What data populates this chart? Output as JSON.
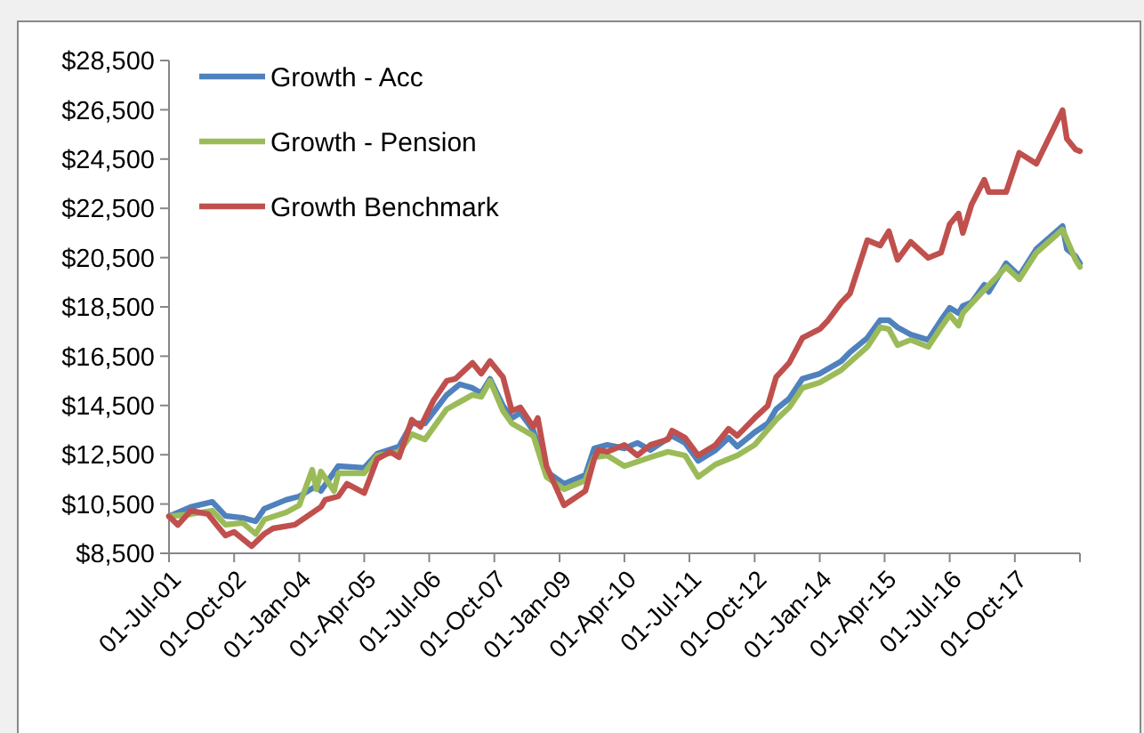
{
  "chart_data": {
    "type": "line",
    "xlim": [
      "2001-07",
      "2019-01"
    ],
    "xticks": [
      {
        "value": "2001-07",
        "label": "01-Jul-01"
      },
      {
        "value": "2002-10",
        "label": "01-Oct-02"
      },
      {
        "value": "2004-01",
        "label": "01-Jan-04"
      },
      {
        "value": "2005-04",
        "label": "01-Apr-05"
      },
      {
        "value": "2006-07",
        "label": "01-Jul-06"
      },
      {
        "value": "2007-10",
        "label": "01-Oct-07"
      },
      {
        "value": "2009-01",
        "label": "01-Jan-09"
      },
      {
        "value": "2010-04",
        "label": "01-Apr-10"
      },
      {
        "value": "2011-07",
        "label": "01-Jul-11"
      },
      {
        "value": "2012-10",
        "label": "01-Oct-12"
      },
      {
        "value": "2014-01",
        "label": "01-Jan-14"
      },
      {
        "value": "2015-04",
        "label": "01-Apr-15"
      },
      {
        "value": "2016-07",
        "label": "01-Jul-16"
      },
      {
        "value": "2017-10",
        "label": "01-Oct-17"
      },
      {
        "value": "2019-01",
        "label": null
      }
    ],
    "ylim": [
      8500,
      28500
    ],
    "yticks": [
      {
        "value": 8500,
        "label": "$8,500"
      },
      {
        "value": 10500,
        "label": "$10,500"
      },
      {
        "value": 12500,
        "label": "$12,500"
      },
      {
        "value": 14500,
        "label": "$14,500"
      },
      {
        "value": 16500,
        "label": "$16,500"
      },
      {
        "value": 18500,
        "label": "$18,500"
      },
      {
        "value": 20500,
        "label": "$20,500"
      },
      {
        "value": 22500,
        "label": "$22,500"
      },
      {
        "value": 24500,
        "label": "$24,500"
      },
      {
        "value": 26500,
        "label": "$26,500"
      },
      {
        "value": 28500,
        "label": "$28,500"
      }
    ],
    "grid": false,
    "legend": "top left",
    "marker": "none",
    "line_style": "solid",
    "series": [
      {
        "name": "Growth - Acc",
        "color": "#4f81bd",
        "x": [
          "2001-07",
          "2001-12",
          "2002-05",
          "2002-08",
          "2002-12",
          "2003-03",
          "2003-05",
          "2003-10",
          "2004-01",
          "2004-05",
          "2004-06",
          "2004-10",
          "2005-04",
          "2005-07",
          "2005-12",
          "2006-03",
          "2006-06",
          "2006-11",
          "2007-02",
          "2007-05",
          "2007-07",
          "2007-09",
          "2007-12",
          "2008-02",
          "2008-04",
          "2008-07",
          "2008-10",
          "2009-02",
          "2009-07",
          "2009-09",
          "2009-12",
          "2010-04",
          "2010-07",
          "2010-10",
          "2011-03",
          "2011-06",
          "2011-09",
          "2012-01",
          "2012-04",
          "2012-06",
          "2012-10",
          "2013-01",
          "2013-03",
          "2013-06",
          "2013-09",
          "2014-01",
          "2014-06",
          "2014-08",
          "2014-12",
          "2015-03",
          "2015-05",
          "2015-07",
          "2015-10",
          "2016-02",
          "2016-05",
          "2016-07",
          "2016-09",
          "2016-10",
          "2016-12",
          "2017-03",
          "2017-04",
          "2017-08",
          "2017-11",
          "2018-03",
          "2018-09",
          "2018-10",
          "2018-12",
          "2019-01"
        ],
        "values": [
          10000,
          10380,
          10590,
          10020,
          9940,
          9800,
          10310,
          10670,
          10810,
          11240,
          11030,
          12040,
          11970,
          12540,
          12830,
          13770,
          13770,
          14930,
          15360,
          15210,
          15000,
          15580,
          14490,
          13990,
          14200,
          13480,
          11820,
          11320,
          11680,
          12760,
          12900,
          12760,
          12980,
          12690,
          13270,
          12980,
          12250,
          12690,
          13190,
          12830,
          13410,
          13770,
          14350,
          14780,
          15580,
          15790,
          16300,
          16660,
          17240,
          17960,
          17960,
          17670,
          17380,
          17160,
          17960,
          18460,
          18250,
          18540,
          18680,
          19400,
          19110,
          20270,
          19760,
          20850,
          21780,
          20850,
          20560,
          20270
        ]
      },
      {
        "name": "Growth - Pension",
        "color": "#9bbb59",
        "x": [
          "2001-07",
          "2001-12",
          "2002-05",
          "2002-08",
          "2002-12",
          "2003-03",
          "2003-05",
          "2003-10",
          "2004-01",
          "2004-04",
          "2004-05",
          "2004-06",
          "2004-09",
          "2004-10",
          "2005-04",
          "2005-07",
          "2005-12",
          "2006-03",
          "2006-06",
          "2006-11",
          "2007-05",
          "2007-07",
          "2007-09",
          "2007-12",
          "2008-02",
          "2008-07",
          "2008-10",
          "2009-02",
          "2009-07",
          "2009-09",
          "2009-12",
          "2010-04",
          "2010-10",
          "2011-02",
          "2011-06",
          "2011-09",
          "2012-01",
          "2012-06",
          "2012-10",
          "2013-03",
          "2013-06",
          "2013-09",
          "2014-01",
          "2014-06",
          "2014-12",
          "2015-03",
          "2015-05",
          "2015-07",
          "2015-10",
          "2016-02",
          "2016-05",
          "2016-07",
          "2016-09",
          "2016-10",
          "2017-03",
          "2017-08",
          "2017-11",
          "2018-03",
          "2018-09",
          "2018-12",
          "2019-01"
        ],
        "values": [
          10000,
          10090,
          10230,
          9660,
          9730,
          9290,
          9870,
          10160,
          10450,
          11890,
          11100,
          11820,
          11030,
          11750,
          11750,
          12470,
          12620,
          13340,
          13120,
          14350,
          14930,
          14850,
          15500,
          14280,
          13770,
          13270,
          11600,
          11100,
          11460,
          12400,
          12470,
          12040,
          12400,
          12620,
          12470,
          11600,
          12110,
          12470,
          12900,
          13920,
          14420,
          15210,
          15430,
          15940,
          16880,
          17670,
          17600,
          16950,
          17160,
          16880,
          17670,
          18170,
          17740,
          18250,
          19190,
          20120,
          19620,
          20700,
          21640,
          20410,
          20120
        ]
      },
      {
        "name": "Growth Benchmark",
        "color": "#c0504d",
        "x": [
          "2001-07",
          "2001-09",
          "2001-12",
          "2002-04",
          "2002-06",
          "2002-08",
          "2002-10",
          "2003-02",
          "2003-05",
          "2003-07",
          "2003-12",
          "2004-06",
          "2004-07",
          "2004-10",
          "2004-12",
          "2005-04",
          "2005-07",
          "2005-10",
          "2005-12",
          "2006-03",
          "2006-05",
          "2006-08",
          "2006-11",
          "2007-01",
          "2007-05",
          "2007-07",
          "2007-09",
          "2007-12",
          "2008-02",
          "2008-04",
          "2008-07",
          "2008-08",
          "2008-10",
          "2009-02",
          "2009-07",
          "2009-09",
          "2009-10",
          "2009-12",
          "2010-04",
          "2010-07",
          "2010-10",
          "2011-02",
          "2011-03",
          "2011-06",
          "2011-09",
          "2012-01",
          "2012-04",
          "2012-06",
          "2012-10",
          "2013-01",
          "2013-03",
          "2013-06",
          "2013-09",
          "2014-01",
          "2014-03",
          "2014-06",
          "2014-08",
          "2014-12",
          "2015-03",
          "2015-05",
          "2015-07",
          "2015-10",
          "2016-02",
          "2016-05",
          "2016-07",
          "2016-09",
          "2016-10",
          "2016-12",
          "2017-03",
          "2017-04",
          "2017-08",
          "2017-11",
          "2018-03",
          "2018-09",
          "2018-10",
          "2018-12",
          "2019-01"
        ],
        "values": [
          10000,
          9650,
          10230,
          10090,
          9650,
          9220,
          9370,
          8790,
          9290,
          9510,
          9660,
          10380,
          10670,
          10810,
          11320,
          10950,
          12330,
          12620,
          12400,
          13920,
          13630,
          14710,
          15500,
          15580,
          16230,
          15790,
          16300,
          15650,
          14280,
          14420,
          13630,
          13990,
          12040,
          10450,
          11030,
          12330,
          12690,
          12620,
          12900,
          12470,
          12900,
          13120,
          13480,
          13190,
          12470,
          12900,
          13550,
          13270,
          13990,
          14490,
          15650,
          16230,
          17240,
          17600,
          17960,
          18680,
          19040,
          21210,
          20990,
          21570,
          20410,
          21140,
          20490,
          20700,
          21860,
          22290,
          21500,
          22650,
          23660,
          23160,
          23160,
          24750,
          24310,
          26480,
          25320,
          24890,
          24820
        ]
      }
    ]
  }
}
